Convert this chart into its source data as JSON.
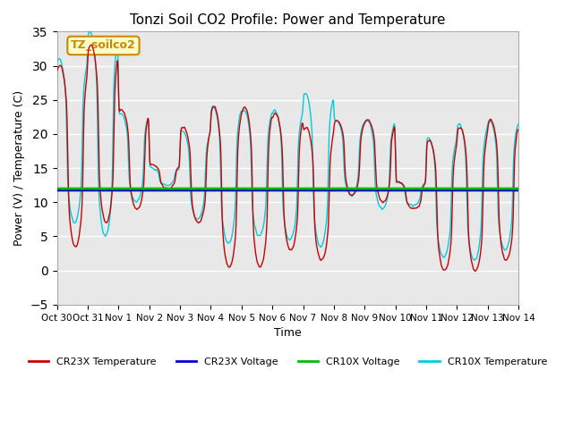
{
  "title": "Tonzi Soil CO2 Profile: Power and Temperature",
  "xlabel": "Time",
  "ylabel": "Power (V) / Temperature (C)",
  "ylim": [
    -5,
    35
  ],
  "yticks": [
    -5,
    0,
    5,
    10,
    15,
    20,
    25,
    30,
    35
  ],
  "annotation_text": "TZ_soilco2",
  "cr23x_voltage_value": 11.75,
  "cr10x_voltage_value": 12.0,
  "colors": {
    "cr23x_temp": "#cc0000",
    "cr23x_voltage": "#0000cc",
    "cr10x_voltage": "#00bb00",
    "cr10x_temp": "#00ccdd",
    "background": "#e8e8e8",
    "annotation_bg": "#ffffcc",
    "annotation_border": "#cc8800"
  },
  "x_tick_labels": [
    "Oct 30",
    "Oct 31",
    "Nov 1",
    "Nov 2",
    "Nov 3",
    "Nov 4",
    "Nov 5",
    "Nov 6",
    "Nov 7",
    "Nov 8",
    "Nov 9",
    "Nov 10",
    "Nov 11",
    "Nov 12",
    "Nov 13",
    "Nov 14"
  ],
  "legend_labels": [
    "CR23X Temperature",
    "CR23X Voltage",
    "CR10X Voltage",
    "CR10X Temperature"
  ]
}
